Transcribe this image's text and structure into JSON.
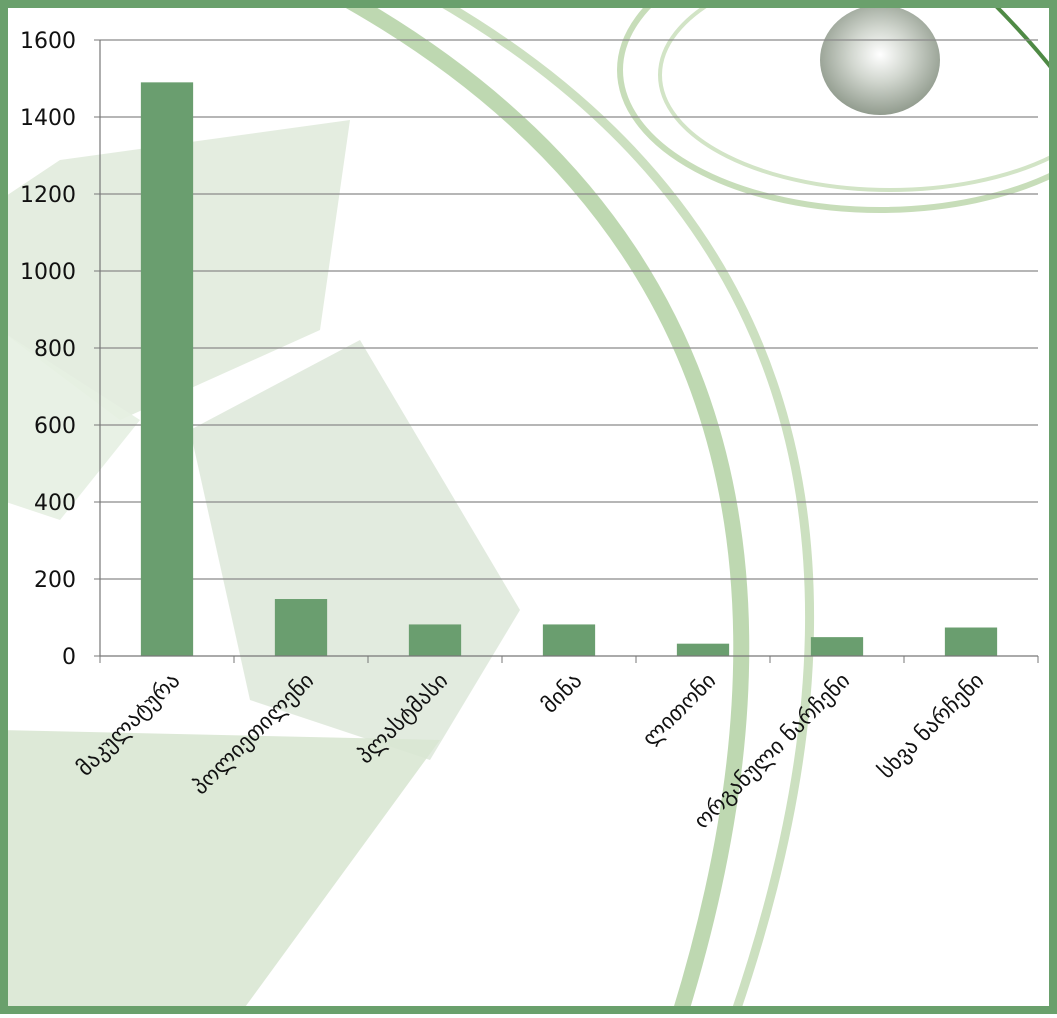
{
  "chart_data": {
    "type": "bar",
    "categories": [
      "მაკულატურა",
      "პოლიეთილენი",
      "პლასტმასი",
      "მინა",
      "ლითონი",
      "ორგანული ნარჩენი",
      "სხვა ნარჩენი"
    ],
    "values": [
      1490,
      148,
      82,
      82,
      32,
      49,
      74
    ],
    "ylim": [
      0,
      1600
    ],
    "yticks": [
      0,
      200,
      400,
      600,
      800,
      1000,
      1200,
      1400,
      1600
    ],
    "grid": true,
    "legend": "none",
    "colors": {
      "bar": "#6a9e6f",
      "frame": "#6aa06c",
      "grid": "#8a8a8a",
      "background_tint": "#dce9d6"
    }
  }
}
